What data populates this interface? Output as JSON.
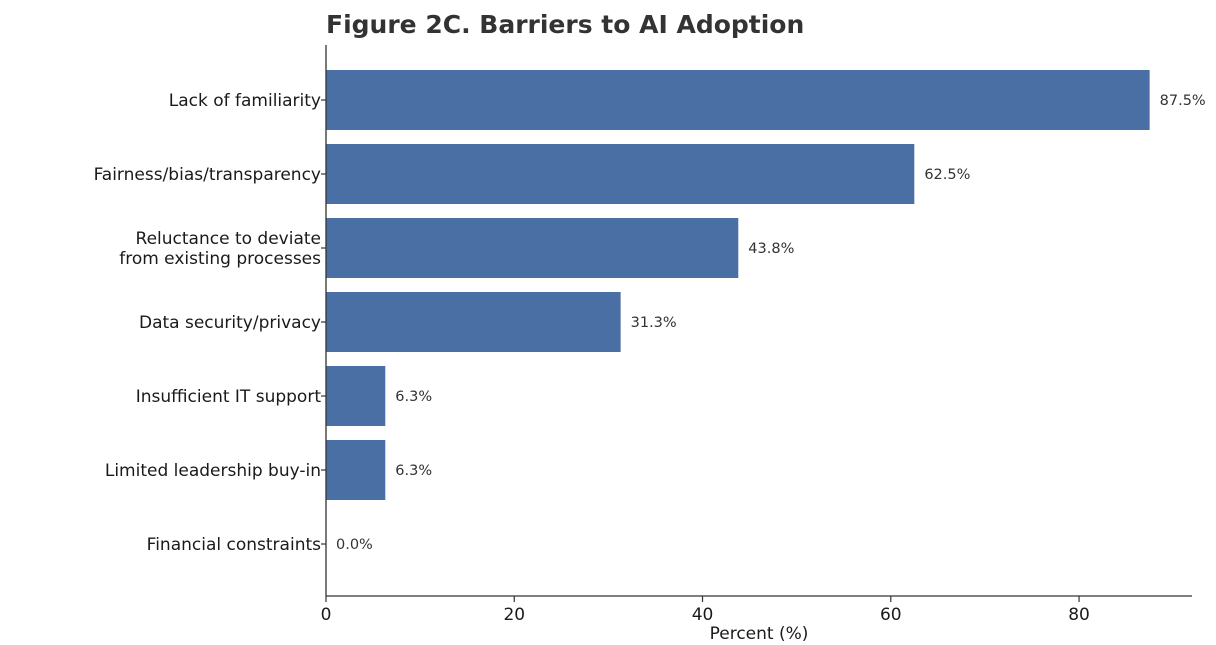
{
  "chart_data": {
    "type": "bar",
    "orientation": "horizontal",
    "title": "Figure 2C. Barriers to AI Adoption",
    "xlabel": "Percent (%)",
    "ylabel": "",
    "xlim": [
      0,
      92
    ],
    "xticks": [
      0,
      20,
      40,
      60,
      80
    ],
    "grid": false,
    "legend": "none",
    "bar_color": "#4a6fa5",
    "categories": [
      [
        "Lack of familiarity"
      ],
      [
        "Fairness/bias/transparency"
      ],
      [
        "Reluctance to deviate",
        "from existing processes"
      ],
      [
        "Data security/privacy"
      ],
      [
        "Insufficient IT support"
      ],
      [
        "Limited leadership buy-in"
      ],
      [
        "Financial constraints"
      ]
    ],
    "values": [
      87.5,
      62.5,
      43.8,
      31.3,
      6.3,
      6.3,
      0.0
    ],
    "value_labels": [
      "87.5%",
      "62.5%",
      "43.8%",
      "31.3%",
      "6.3%",
      "6.3%",
      "0.0%"
    ]
  }
}
